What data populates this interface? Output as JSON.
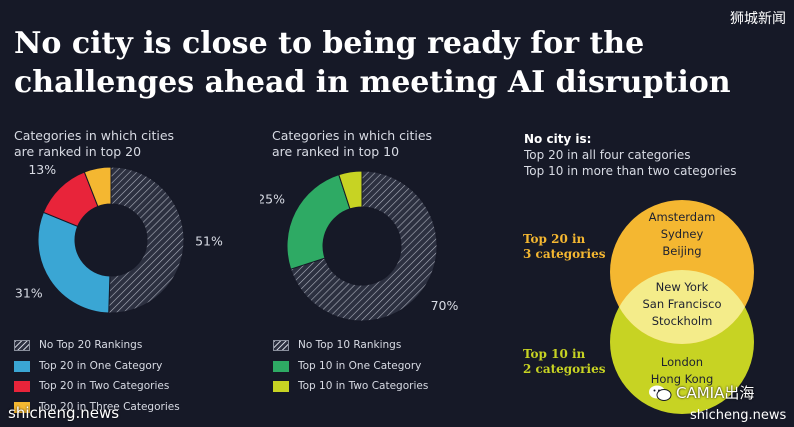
{
  "header": {
    "title_line1": "No city is close to being ready for the",
    "title_line2": "challenges ahead in meeting AI disruption",
    "brand_top_right": "狮城新闻"
  },
  "chart_data": [
    {
      "type": "pie",
      "donut": true,
      "subtitle_line1": "Categories in which cities",
      "subtitle_line2": "are ranked in top 20",
      "slices": [
        {
          "label": "No Top 20 Rankings",
          "value": 51,
          "display": "51%",
          "color": "#3a3e4c",
          "hatched": true
        },
        {
          "label": "Top 20 in One Category",
          "value": 31,
          "display": "31%",
          "color": "#3aa6d4",
          "hatched": false
        },
        {
          "label": "Top 20 in Two Categories",
          "value": 13,
          "display": "13%",
          "color": "#e8243a",
          "hatched": false
        },
        {
          "label": "Top 20 in Three Categories",
          "value": 6,
          "display": "6%",
          "color": "#f4b731",
          "hatched": false
        }
      ]
    },
    {
      "type": "pie",
      "donut": true,
      "subtitle_line1": "Categories in which cities",
      "subtitle_line2": "are ranked in top 10",
      "slices": [
        {
          "label": "No Top 10 Rankings",
          "value": 70,
          "display": "70%",
          "color": "#3a3e4c",
          "hatched": true
        },
        {
          "label": "Top 10 in One Category",
          "value": 25,
          "display": "25%",
          "color": "#2eaa64",
          "hatched": false
        },
        {
          "label": "Top 10 in Two Categories",
          "value": 5,
          "display": "5%",
          "color": "#c7d323",
          "hatched": false
        }
      ]
    }
  ],
  "venn": {
    "note_heading": "No city is:",
    "note_line1": "Top 20 in all four categories",
    "note_line2": "Top 10 in more than two categories",
    "label_top_line1": "Top 20 in",
    "label_top_line2": "3 categories",
    "label_bottom_line1": "Top 10 in",
    "label_bottom_line2": "2 categories",
    "top_only": [
      "Amsterdam",
      "Sydney",
      "Beijing"
    ],
    "overlap": [
      "New York",
      "San Francisco",
      "Stockholm"
    ],
    "bottom_only": [
      "London",
      "Hong Kong"
    ],
    "color_top": "#f4b731",
    "color_bottom": "#c7d323",
    "color_overlap": "#f4ec8a",
    "label_top_color": "#f4b731",
    "label_bottom_color": "#c7d323"
  },
  "watermarks": {
    "bottom_left": "shicheng.news",
    "bottom_right": "shicheng.news",
    "wechat": "CAMIA出海"
  }
}
